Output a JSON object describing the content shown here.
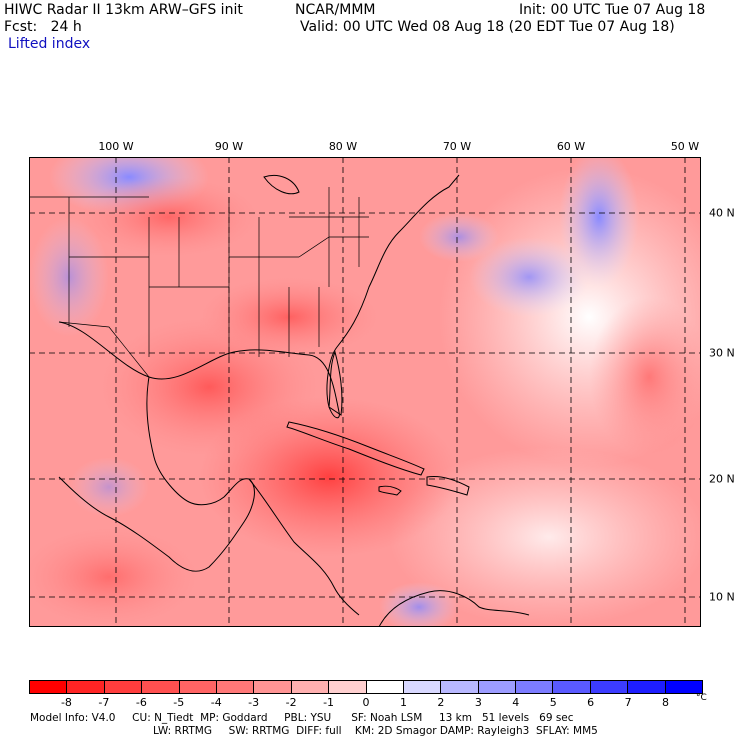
{
  "header": {
    "model_title": "HIWC Radar II 13km ARW–GFS init",
    "org": "NCAR/MMM",
    "init": "Init: 00 UTC Tue 07 Aug 18",
    "fcst": "Fcst:   24 h",
    "valid": "Valid: 00 UTC Wed 08 Aug 18 (20 EDT Tue 07 Aug 18)",
    "field": "Lifted index"
  },
  "map": {
    "lon_labels": [
      "100 W",
      "90 W",
      "80 W",
      "70 W",
      "60 W",
      "50 W"
    ],
    "lat_labels": [
      "40 N",
      "30 N",
      "20 N",
      "10 N"
    ]
  },
  "colorbar": {
    "labels": [
      "-8",
      "-7",
      "-6",
      "-5",
      "-4",
      "-3",
      "-2",
      "-1",
      "0",
      "1",
      "2",
      "3",
      "4",
      "5",
      "6",
      "7",
      "8"
    ],
    "unit": "°C",
    "colors": [
      "#ff0000",
      "#ff2424",
      "#ff3d3d",
      "#ff5050",
      "#ff6464",
      "#ff7878",
      "#ff9494",
      "#ffb0b0",
      "#ffd0d0",
      "#ffffff",
      "#d8d8ff",
      "#b8b8ff",
      "#9c9cff",
      "#7c7cff",
      "#5a5aff",
      "#3c3cff",
      "#1e1eff",
      "#0000ff"
    ]
  },
  "footer": {
    "line1": "Model Info: V4.0     CU: N_Tiedt  MP: Goddard     PBL: YSU      SF: Noah LSM     13 km   51 levels   69 sec",
    "line2": "LW: RRTMG     SW: RRTMG  DIFF: full    KM: 2D Smagor DAMP: Rayleigh3  SFLAY: MM5"
  }
}
